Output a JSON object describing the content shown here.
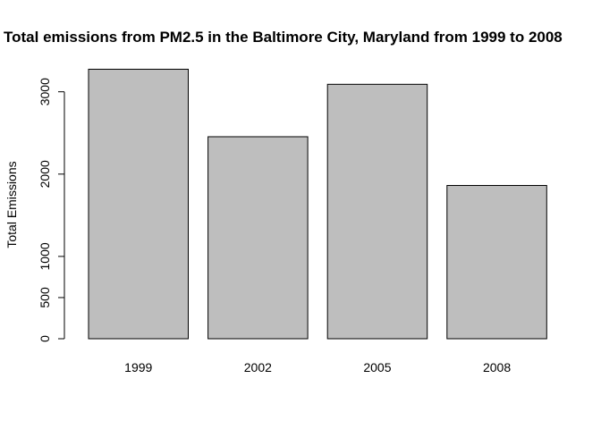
{
  "chart_data": {
    "type": "bar",
    "title": "Total emissions from PM2.5 in the Baltimore City, Maryland from 1999 to 2008",
    "xlabel": "",
    "ylabel": "Total Emissions",
    "categories": [
      "1999",
      "2002",
      "2005",
      "2008"
    ],
    "values": [
      3274,
      2454,
      3091,
      1862
    ],
    "ylim": [
      0,
      3300
    ],
    "yticks": [
      0,
      500,
      1000,
      2000,
      3000
    ],
    "ytick_labels": [
      "0",
      "500",
      "1000",
      "2000",
      "3000"
    ],
    "bar_color": "#bebebe",
    "grid": false,
    "legend": "none"
  }
}
